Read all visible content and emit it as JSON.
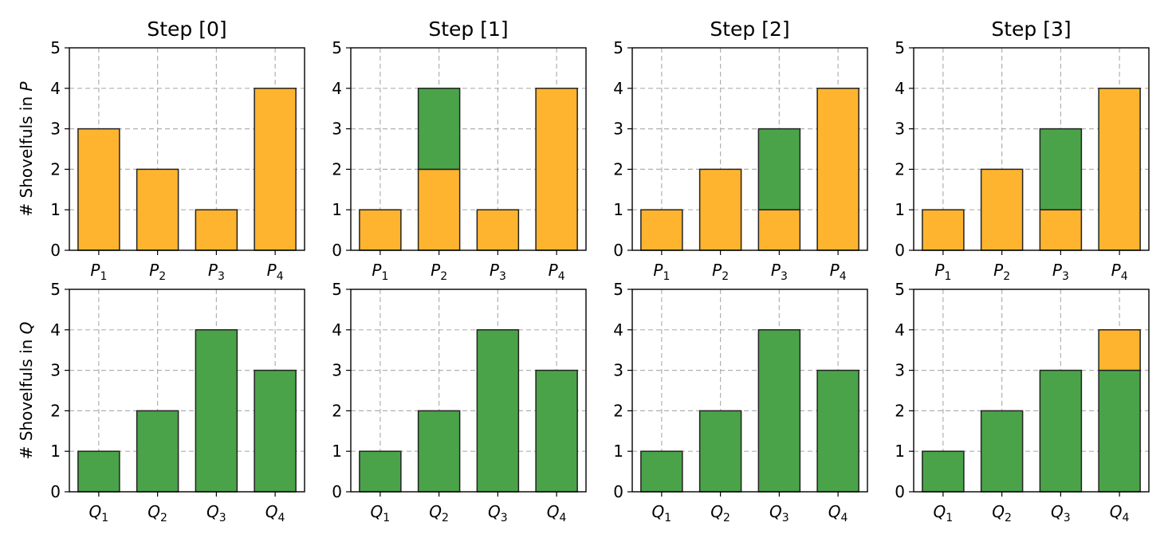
{
  "colors": {
    "P": "#FFB42F",
    "Q": "#4BA349"
  },
  "row_labels": [
    {
      "prefix": "# Shovelfuls in ",
      "var": "P"
    },
    {
      "prefix": "# Shovelfuls in ",
      "var": "Q"
    }
  ],
  "chart_data": [
    {
      "type": "bar",
      "stacked": true,
      "title": "Step [0]",
      "ylim": [
        0,
        5
      ],
      "yticks": [
        0,
        1,
        2,
        3,
        4,
        5
      ],
      "grid": true,
      "categories": [
        [
          "P",
          "1"
        ],
        [
          "P",
          "2"
        ],
        [
          "P",
          "3"
        ],
        [
          "P",
          "4"
        ]
      ],
      "series": [
        {
          "values": [
            3,
            2,
            1,
            4
          ],
          "color_key": "P"
        },
        {
          "values": [
            0,
            0,
            0,
            0
          ],
          "color_key": "Q"
        }
      ]
    },
    {
      "type": "bar",
      "stacked": true,
      "title": "Step [1]",
      "ylim": [
        0,
        5
      ],
      "yticks": [
        0,
        1,
        2,
        3,
        4,
        5
      ],
      "grid": true,
      "categories": [
        [
          "P",
          "1"
        ],
        [
          "P",
          "2"
        ],
        [
          "P",
          "3"
        ],
        [
          "P",
          "4"
        ]
      ],
      "series": [
        {
          "values": [
            1,
            2,
            1,
            4
          ],
          "color_key": "P"
        },
        {
          "values": [
            0,
            2,
            0,
            0
          ],
          "color_key": "Q"
        }
      ]
    },
    {
      "type": "bar",
      "stacked": true,
      "title": "Step [2]",
      "ylim": [
        0,
        5
      ],
      "yticks": [
        0,
        1,
        2,
        3,
        4,
        5
      ],
      "grid": true,
      "categories": [
        [
          "P",
          "1"
        ],
        [
          "P",
          "2"
        ],
        [
          "P",
          "3"
        ],
        [
          "P",
          "4"
        ]
      ],
      "series": [
        {
          "values": [
            1,
            2,
            1,
            4
          ],
          "color_key": "P"
        },
        {
          "values": [
            0,
            0,
            2,
            0
          ],
          "color_key": "Q"
        }
      ]
    },
    {
      "type": "bar",
      "stacked": true,
      "title": "Step [3]",
      "ylim": [
        0,
        5
      ],
      "yticks": [
        0,
        1,
        2,
        3,
        4,
        5
      ],
      "grid": true,
      "categories": [
        [
          "P",
          "1"
        ],
        [
          "P",
          "2"
        ],
        [
          "P",
          "3"
        ],
        [
          "P",
          "4"
        ]
      ],
      "series": [
        {
          "values": [
            1,
            2,
            1,
            4
          ],
          "color_key": "P"
        },
        {
          "values": [
            0,
            0,
            2,
            0
          ],
          "color_key": "Q"
        }
      ]
    },
    {
      "type": "bar",
      "stacked": true,
      "title": "",
      "ylim": [
        0,
        5
      ],
      "yticks": [
        0,
        1,
        2,
        3,
        4,
        5
      ],
      "grid": true,
      "categories": [
        [
          "Q",
          "1"
        ],
        [
          "Q",
          "2"
        ],
        [
          "Q",
          "3"
        ],
        [
          "Q",
          "4"
        ]
      ],
      "series": [
        {
          "values": [
            1,
            2,
            4,
            3
          ],
          "color_key": "Q"
        },
        {
          "values": [
            0,
            0,
            0,
            0
          ],
          "color_key": "P"
        }
      ]
    },
    {
      "type": "bar",
      "stacked": true,
      "title": "",
      "ylim": [
        0,
        5
      ],
      "yticks": [
        0,
        1,
        2,
        3,
        4,
        5
      ],
      "grid": true,
      "categories": [
        [
          "Q",
          "1"
        ],
        [
          "Q",
          "2"
        ],
        [
          "Q",
          "3"
        ],
        [
          "Q",
          "4"
        ]
      ],
      "series": [
        {
          "values": [
            1,
            2,
            4,
            3
          ],
          "color_key": "Q"
        },
        {
          "values": [
            0,
            0,
            0,
            0
          ],
          "color_key": "P"
        }
      ]
    },
    {
      "type": "bar",
      "stacked": true,
      "title": "",
      "ylim": [
        0,
        5
      ],
      "yticks": [
        0,
        1,
        2,
        3,
        4,
        5
      ],
      "grid": true,
      "categories": [
        [
          "Q",
          "1"
        ],
        [
          "Q",
          "2"
        ],
        [
          "Q",
          "3"
        ],
        [
          "Q",
          "4"
        ]
      ],
      "series": [
        {
          "values": [
            1,
            2,
            4,
            3
          ],
          "color_key": "Q"
        },
        {
          "values": [
            0,
            0,
            0,
            0
          ],
          "color_key": "P"
        }
      ]
    },
    {
      "type": "bar",
      "stacked": true,
      "title": "",
      "ylim": [
        0,
        5
      ],
      "yticks": [
        0,
        1,
        2,
        3,
        4,
        5
      ],
      "grid": true,
      "categories": [
        [
          "Q",
          "1"
        ],
        [
          "Q",
          "2"
        ],
        [
          "Q",
          "3"
        ],
        [
          "Q",
          "4"
        ]
      ],
      "series": [
        {
          "values": [
            1,
            2,
            3,
            3
          ],
          "color_key": "Q"
        },
        {
          "values": [
            0,
            0,
            0,
            1
          ],
          "color_key": "P"
        }
      ]
    }
  ]
}
